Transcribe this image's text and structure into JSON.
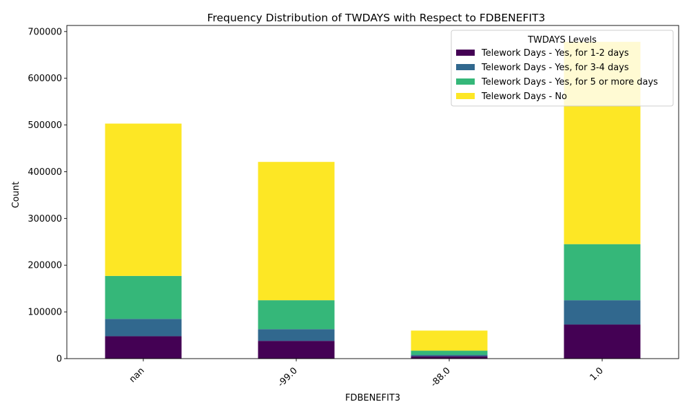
{
  "chart_data": {
    "type": "bar",
    "stacked": true,
    "title": "Frequency Distribution of TWDAYS with Respect to FDBENEFIT3",
    "xlabel": "FDBENEFIT3",
    "ylabel": "Count",
    "categories": [
      "nan",
      "-99.0",
      "-88.0",
      "1.0"
    ],
    "ylim": [
      0,
      713000
    ],
    "yticks": [
      0,
      100000,
      200000,
      300000,
      400000,
      500000,
      600000,
      700000
    ],
    "legend": {
      "title": "TWDAYS Levels",
      "placement": "top-right"
    },
    "series": [
      {
        "name": "Telework Days - Yes, for 1-2 days",
        "color": "#440154",
        "values": [
          48000,
          38000,
          5000,
          73000
        ]
      },
      {
        "name": "Telework Days - Yes, for 3-4 days",
        "color": "#31688e",
        "values": [
          37000,
          25000,
          3000,
          52000
        ]
      },
      {
        "name": "Telework Days - Yes, for 5 or more days",
        "color": "#35b779",
        "values": [
          92000,
          62000,
          9000,
          120000
        ]
      },
      {
        "name": "Telework Days - No",
        "color": "#fde725",
        "values": [
          326000,
          296000,
          43000,
          433000
        ]
      }
    ]
  }
}
